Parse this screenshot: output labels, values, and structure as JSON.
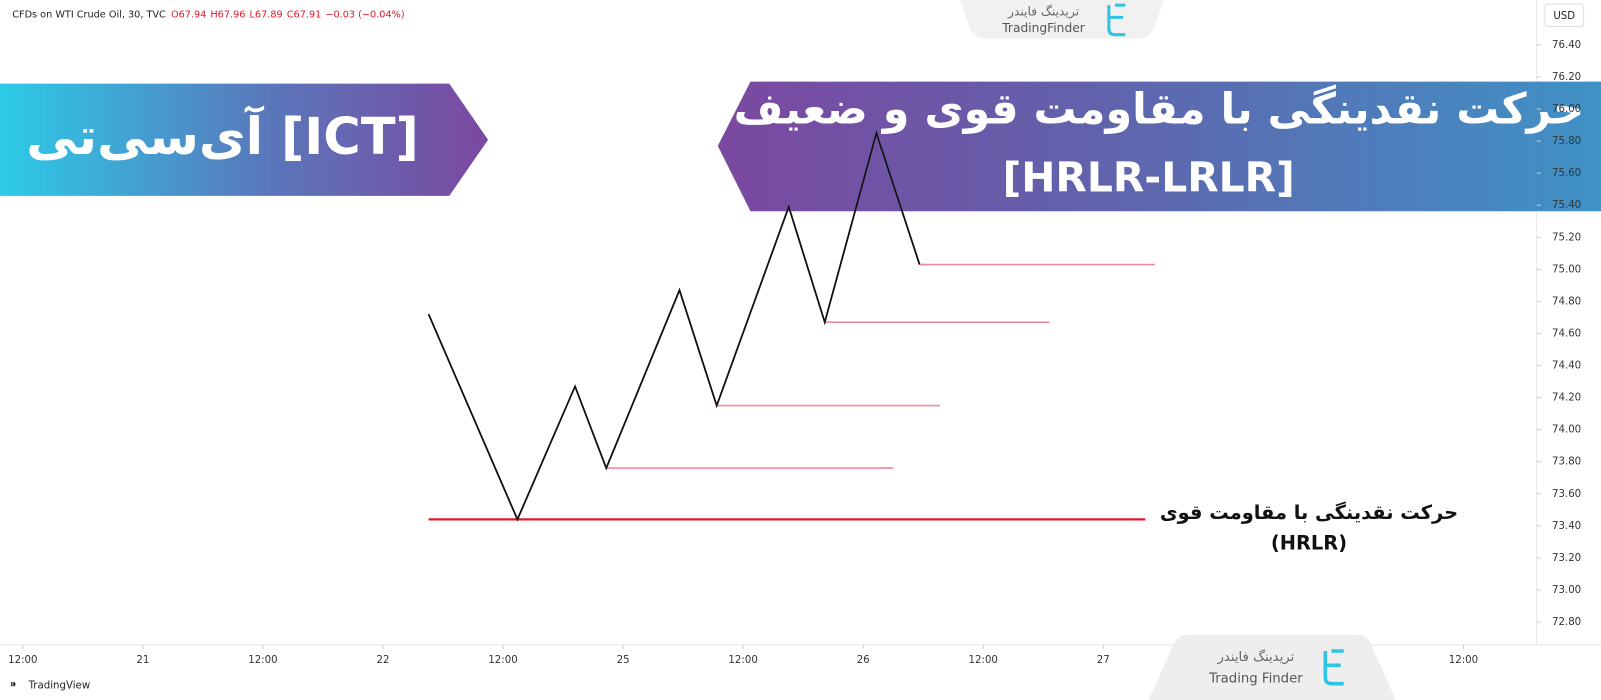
{
  "chart_data": {
    "type": "line",
    "title": "CFDs on WTI Crude Oil, 30, TVC",
    "ohlc": [
      "O67.94",
      "H67.96",
      "L67.89",
      "C67.91",
      "−0.03 (−0.04%)"
    ],
    "currency": "USD",
    "xlim": [
      -0.19,
      12.61
    ],
    "xticks": [
      {
        "value": 0,
        "label": "12:00"
      },
      {
        "value": 1,
        "label": "21"
      },
      {
        "value": 2,
        "label": "12:00"
      },
      {
        "value": 3,
        "label": "22"
      },
      {
        "value": 4,
        "label": "12:00"
      },
      {
        "value": 5,
        "label": "25"
      },
      {
        "value": 6,
        "label": "12:00"
      },
      {
        "value": 7,
        "label": "26"
      },
      {
        "value": 8,
        "label": "12:00"
      },
      {
        "value": 9,
        "label": "27"
      },
      {
        "value": 12,
        "label": "12:00"
      }
    ],
    "ylim": [
      72.67,
      76.68
    ],
    "yticks": [
      {
        "value": 72.8,
        "label": "72.80"
      },
      {
        "value": 73,
        "label": "73.00"
      },
      {
        "value": 73.2,
        "label": "73.20"
      },
      {
        "value": 73.4,
        "label": "73.40"
      },
      {
        "value": 73.6,
        "label": "73.60"
      },
      {
        "value": 73.8,
        "label": "73.80"
      },
      {
        "value": 74,
        "label": "74.00"
      },
      {
        "value": 74.2,
        "label": "74.20"
      },
      {
        "value": 74.4,
        "label": "74.40"
      },
      {
        "value": 74.6,
        "label": "74.60"
      },
      {
        "value": 74.8,
        "label": "74.80"
      },
      {
        "value": 75,
        "label": "75.00"
      },
      {
        "value": 75.2,
        "label": "75.20"
      },
      {
        "value": 75.4,
        "label": "75.40"
      },
      {
        "value": 75.6,
        "label": "75.60"
      },
      {
        "value": 75.8,
        "label": "75.80"
      },
      {
        "value": 76,
        "label": "76.00"
      },
      {
        "value": 76.2,
        "label": "76.20"
      },
      {
        "value": 76.4,
        "label": "76.40"
      }
    ],
    "series": [
      {
        "color": "#111111",
        "x": [
          3.38,
          4.12,
          4.6,
          4.86,
          5.47,
          5.78,
          6.38,
          6.68,
          7.11,
          7.47
        ],
        "values": [
          74.72,
          73.44,
          74.27,
          73.76,
          74.87,
          74.15,
          75.39,
          74.67,
          75.85,
          75.03
        ]
      },
      {
        "color": "#e0182d",
        "x": [
          3.38,
          9.35
        ],
        "values": [
          73.44,
          73.44
        ]
      },
      {
        "color": "#f08a9a",
        "x": [
          4.86,
          7.25
        ],
        "values": [
          73.76,
          73.76
        ]
      },
      {
        "color": "#f08a9a",
        "x": [
          5.78,
          7.64
        ],
        "values": [
          74.15,
          74.15
        ]
      },
      {
        "color": "#f08a9a",
        "x": [
          6.68,
          8.55
        ],
        "values": [
          74.67,
          74.67
        ]
      },
      {
        "color": "#f08a9a",
        "x": [
          7.47,
          9.43
        ],
        "values": [
          75.03,
          75.03
        ]
      }
    ],
    "annotation": [
      "حرکت نقدینگی  با مقاومت قوی",
      "(HRLR)"
    ]
  },
  "banners": {
    "left": "آی‌سی‌تی [ICT]",
    "right": [
      "حرکت نقدینگی با مقاومت قوی و ضعیف",
      "[HRLR-LRLR]"
    ]
  },
  "logos": {
    "top": [
      "تریدینگ فایندر",
      "TradingFinder"
    ],
    "bottom": [
      "تریدینگ فایندر",
      "Trading Finder"
    ]
  },
  "footer": "TradingView"
}
